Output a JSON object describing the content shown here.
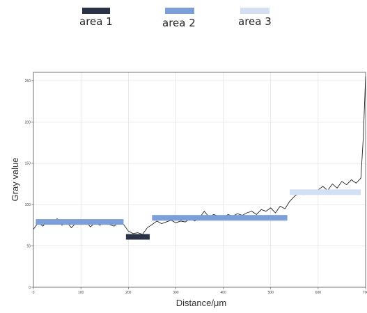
{
  "legend": {
    "items": [
      {
        "label": "area 1",
        "color": "#2a3346"
      },
      {
        "label": "area 2",
        "color": "#7c9fd9"
      },
      {
        "label": "area 3",
        "color": "#d3dff3"
      }
    ]
  },
  "chart_data": {
    "type": "line",
    "xlabel": "Distance/μm",
    "ylabel": "Gray value",
    "xlim": [
      0,
      700
    ],
    "ylim": [
      0,
      260
    ],
    "x_ticks": [
      0,
      100,
      200,
      300,
      400,
      500,
      600,
      700
    ],
    "y_ticks": [
      0,
      50,
      100,
      150,
      200,
      250
    ],
    "grid": true,
    "series": [
      {
        "color": "#222222",
        "x": [
          0,
          10,
          20,
          30,
          40,
          50,
          60,
          70,
          80,
          90,
          100,
          110,
          120,
          130,
          140,
          150,
          160,
          170,
          180,
          190,
          200,
          210,
          220,
          230,
          240,
          250,
          260,
          270,
          280,
          290,
          300,
          310,
          320,
          330,
          340,
          350,
          360,
          370,
          380,
          390,
          400,
          410,
          420,
          430,
          440,
          450,
          460,
          470,
          480,
          490,
          500,
          510,
          520,
          530,
          540,
          550,
          560,
          570,
          580,
          590,
          600,
          610,
          620,
          630,
          640,
          650,
          660,
          670,
          680,
          690,
          695,
          700
        ],
        "y": [
          70,
          78,
          74,
          80,
          77,
          83,
          75,
          79,
          72,
          78,
          76,
          80,
          73,
          78,
          75,
          79,
          76,
          74,
          78,
          76,
          68,
          65,
          66,
          64,
          72,
          76,
          80,
          77,
          79,
          81,
          78,
          80,
          79,
          83,
          80,
          84,
          92,
          85,
          88,
          86,
          84,
          88,
          86,
          89,
          87,
          90,
          92,
          88,
          94,
          92,
          96,
          90,
          98,
          95,
          104,
          110,
          114,
          112,
          116,
          113,
          118,
          122,
          117,
          125,
          120,
          128,
          124,
          130,
          126,
          132,
          180,
          255
        ]
      }
    ],
    "regions": [
      {
        "name": "area 2",
        "x0": 5,
        "x1": 190,
        "y": 79
      },
      {
        "name": "area 1",
        "x0": 195,
        "x1": 245,
        "y": 61
      },
      {
        "name": "area 2",
        "x0": 250,
        "x1": 535,
        "y": 84
      },
      {
        "name": "area 3",
        "x0": 540,
        "x1": 690,
        "y": 115
      }
    ]
  }
}
